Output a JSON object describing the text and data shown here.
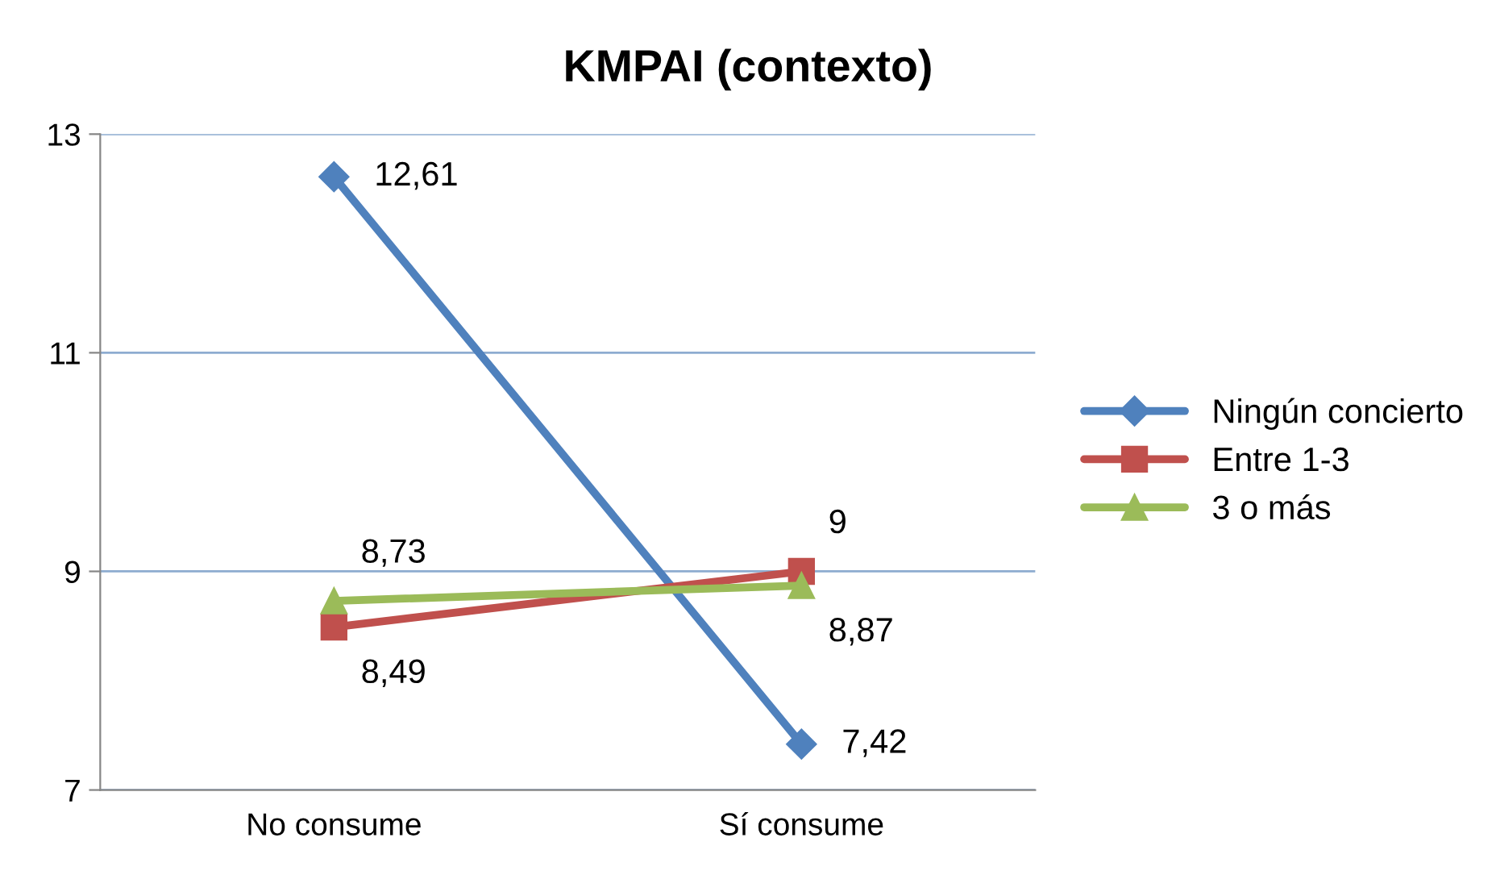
{
  "chart_data": {
    "type": "line",
    "title": "KMPAI (contexto)",
    "categories": [
      "No consume",
      "Sí consume"
    ],
    "series": [
      {
        "name": "Ningún concierto",
        "color": "#4f81bd",
        "marker": "diamond",
        "values": [
          12.61,
          7.42
        ],
        "value_labels": [
          "12,61",
          "7,42"
        ]
      },
      {
        "name": "Entre 1-3",
        "color": "#c0504d",
        "marker": "square",
        "values": [
          8.49,
          9
        ],
        "value_labels": [
          "8,49",
          "9"
        ]
      },
      {
        "name": "3 o más",
        "color": "#9bbb59",
        "marker": "triangle",
        "values": [
          8.73,
          8.87
        ],
        "value_labels": [
          "8,73",
          "8,87"
        ]
      }
    ],
    "ylim": [
      7,
      13
    ],
    "yticks": [
      7,
      9,
      11,
      13
    ],
    "grid": "y",
    "legend": "right"
  }
}
